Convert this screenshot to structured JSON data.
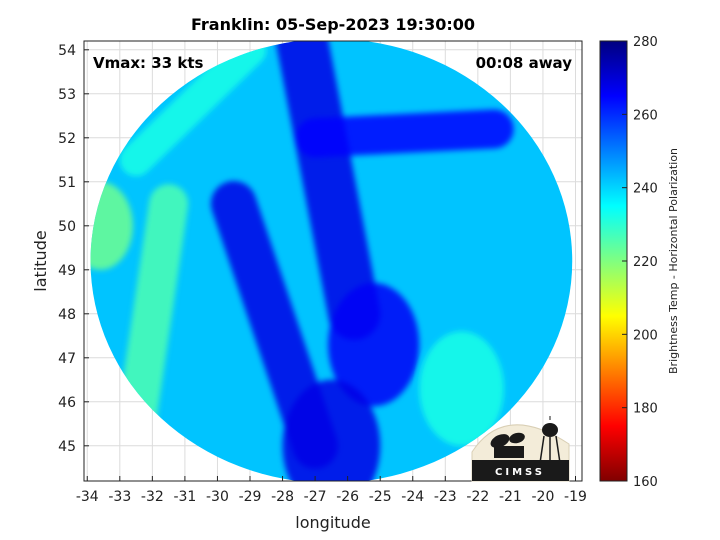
{
  "chart_data": {
    "type": "heatmap",
    "title": "Franklin: 05-Sep-2023 19:30:00",
    "xlabel": "longitude",
    "ylabel": "latitude",
    "xlim": [
      -34.1,
      -18.8
    ],
    "ylim": [
      44.2,
      54.2
    ],
    "xticks": [
      -34,
      -33,
      -32,
      -31,
      -30,
      -29,
      -28,
      -27,
      -26,
      -25,
      -24,
      -23,
      -22,
      -21,
      -20,
      -19
    ],
    "yticks": [
      45,
      46,
      47,
      48,
      49,
      50,
      51,
      52,
      53,
      54
    ],
    "grid": true,
    "annotations": {
      "vmax": "Vmax: 33 kts",
      "time_away": "00:08 away"
    },
    "colorbar": {
      "label": "Brightness Temp - Horizontal Polarization",
      "range": [
        160,
        280
      ],
      "ticks": [
        160,
        180,
        200,
        220,
        240,
        260,
        280
      ],
      "colormap": "jet"
    },
    "swath": {
      "center": [
        -26.5,
        49.2
      ],
      "radius_lon": 7.4,
      "radius_lat": 5.05
    },
    "field": {
      "background_value": 242,
      "features": [
        {
          "kind": "cold_band",
          "from": [
            -27.4,
            54.2
          ],
          "to": [
            -25.8,
            48.0
          ],
          "width_deg": 1.6,
          "value": 268
        },
        {
          "kind": "cold_band",
          "from": [
            -29.5,
            50.5
          ],
          "to": [
            -27.0,
            45.0
          ],
          "width_deg": 1.4,
          "value": 268
        },
        {
          "kind": "cold_band",
          "from": [
            -27.0,
            52.0
          ],
          "to": [
            -21.5,
            52.2
          ],
          "width_deg": 1.2,
          "value": 265
        },
        {
          "kind": "cold_patch",
          "center": [
            -25.2,
            47.3
          ],
          "radius_deg": 1.4,
          "value": 266
        },
        {
          "kind": "cold_patch",
          "center": [
            -26.5,
            45.0
          ],
          "radius_deg": 1.5,
          "value": 268
        },
        {
          "kind": "warm_band",
          "from": [
            -31.5,
            50.5
          ],
          "to": [
            -32.5,
            45.5
          ],
          "width_deg": 1.2,
          "value": 226
        },
        {
          "kind": "warm_band",
          "from": [
            -29.0,
            54.0
          ],
          "to": [
            -32.5,
            51.5
          ],
          "width_deg": 1.0,
          "value": 232
        },
        {
          "kind": "warm_patch",
          "center": [
            -33.6,
            50.0
          ],
          "radius_deg": 1.0,
          "value": 222
        },
        {
          "kind": "warm_patch",
          "center": [
            -22.5,
            46.3
          ],
          "radius_deg": 1.3,
          "value": 232
        }
      ]
    }
  },
  "logo": {
    "text": "CIMSS"
  },
  "colors": {
    "axes": "#222222",
    "grid": "#dcdcdc"
  }
}
